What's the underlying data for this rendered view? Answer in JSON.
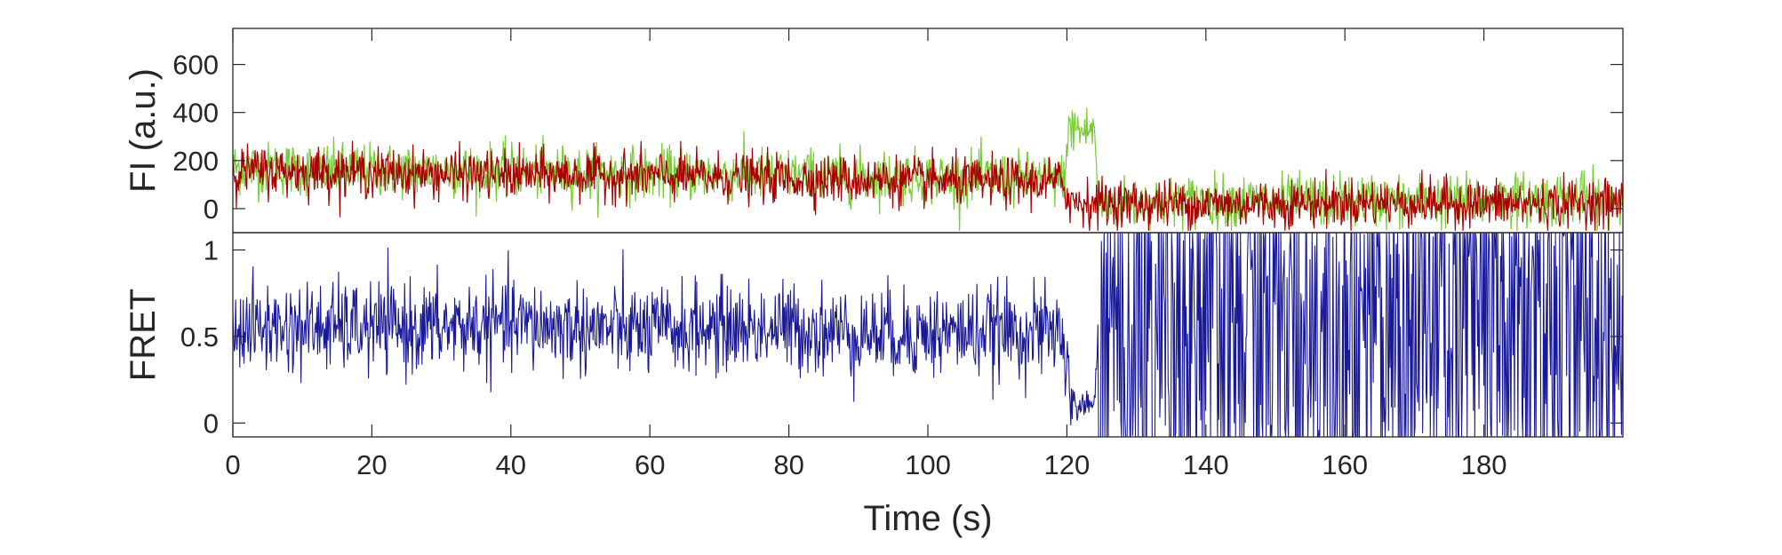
{
  "chart_data": [
    {
      "type": "line",
      "panel": "top",
      "ylabel": "FI (a.u.)",
      "xlabel": "",
      "xlim": [
        0,
        200
      ],
      "ylim": [
        -100,
        750
      ],
      "yticks": [
        0,
        200,
        400,
        600
      ],
      "ytick_labels": [
        "0",
        "200",
        "400",
        "600"
      ],
      "grid": false,
      "colors": {
        "donor": "#77cc33",
        "acceptor": "#aa0000"
      },
      "series": [
        {
          "color_key": "donor",
          "x": [
            0,
            10,
            20,
            30,
            40,
            50,
            60,
            70,
            80,
            90,
            100,
            110,
            119.5,
            120.5,
            122,
            124,
            124.5,
            130,
            140,
            150,
            160,
            170,
            180,
            190,
            200
          ],
          "values": [
            170,
            165,
            160,
            160,
            155,
            150,
            145,
            145,
            140,
            135,
            130,
            125,
            120,
            350,
            320,
            330,
            20,
            25,
            30,
            30,
            35,
            30,
            35,
            40,
            40
          ]
        },
        {
          "color_key": "acceptor",
          "x": [
            0,
            10,
            20,
            30,
            40,
            50,
            60,
            70,
            80,
            90,
            100,
            110,
            119.5,
            120.5,
            125,
            130,
            140,
            150,
            160,
            170,
            180,
            190,
            200
          ],
          "values": [
            160,
            155,
            150,
            145,
            140,
            140,
            135,
            130,
            125,
            120,
            115,
            110,
            110,
            30,
            25,
            20,
            20,
            20,
            25,
            25,
            20,
            20,
            25
          ]
        }
      ]
    },
    {
      "type": "line",
      "panel": "bottom",
      "xlabel": "Time (s)",
      "ylabel": "FRET",
      "xlim": [
        0,
        200
      ],
      "ylim": [
        -0.08,
        1.1
      ],
      "xticks": [
        0,
        20,
        40,
        60,
        80,
        100,
        120,
        140,
        160,
        180
      ],
      "xtick_labels": [
        "0",
        "20",
        "40",
        "60",
        "80",
        "100",
        "120",
        "140",
        "160",
        "180"
      ],
      "yticks": [
        0,
        0.5,
        1
      ],
      "ytick_labels": [
        "0",
        "0.5",
        "1"
      ],
      "grid": false,
      "colors": {
        "fret": "#1a1a99"
      },
      "series": [
        {
          "color_key": "fret",
          "x": [
            0,
            10,
            20,
            30,
            40,
            50,
            60,
            70,
            80,
            90,
            100,
            110,
            119.5,
            120.5,
            124,
            124.5,
            130,
            140,
            150,
            160,
            170,
            180,
            190,
            200
          ],
          "values": [
            0.55,
            0.55,
            0.55,
            0.55,
            0.57,
            0.55,
            0.53,
            0.55,
            0.55,
            0.52,
            0.52,
            0.53,
            0.52,
            0.1,
            0.1,
            0.55,
            0.55,
            0.55,
            0.55,
            0.55,
            0.55,
            0.55,
            0.55,
            0.55
          ]
        }
      ]
    }
  ]
}
